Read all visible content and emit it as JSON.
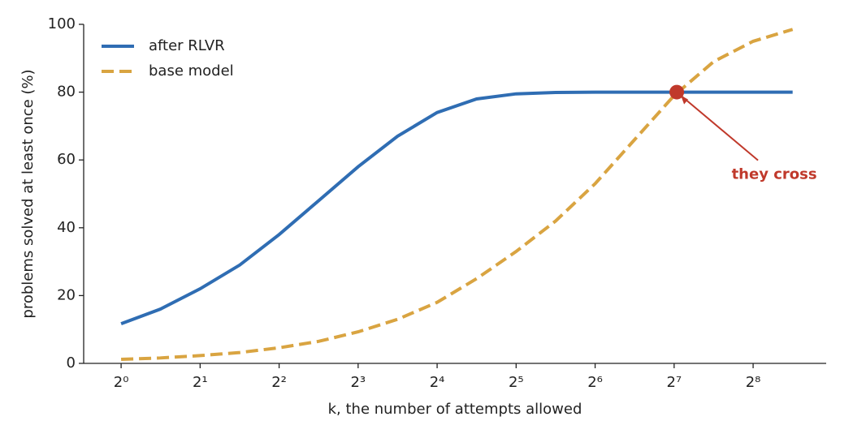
{
  "chart_data": {
    "type": "line",
    "xlabel": "k, the number of attempts allowed",
    "ylabel": "problems solved at least once (%)",
    "xscale": "log2",
    "x": [
      1,
      1.41,
      2,
      2.83,
      4,
      5.66,
      8,
      11.31,
      16,
      22.63,
      32,
      45.25,
      64,
      90.51,
      128,
      181.02,
      256,
      362.04
    ],
    "series": [
      {
        "name": "after RLVR",
        "color": "#2f6db3",
        "dash": "solid",
        "values": [
          11.7,
          16,
          22,
          29,
          38,
          48,
          58,
          67,
          74,
          78,
          79.5,
          79.9,
          80,
          80,
          80,
          80,
          80,
          80
        ]
      },
      {
        "name": "base model",
        "color": "#d9a441",
        "dash": "dashed",
        "values": [
          1.2,
          1.6,
          2.3,
          3.2,
          4.6,
          6.5,
          9.3,
          13,
          18,
          25,
          33,
          42,
          53,
          66,
          79,
          89,
          95,
          98.5
        ]
      }
    ],
    "xlim": [
      0.72,
      486
    ],
    "ylim": [
      0,
      100
    ],
    "xticks": [
      {
        "value": 1,
        "label": "2⁰"
      },
      {
        "value": 2,
        "label": "2¹"
      },
      {
        "value": 4,
        "label": "2²"
      },
      {
        "value": 8,
        "label": "2³"
      },
      {
        "value": 16,
        "label": "2⁴"
      },
      {
        "value": 32,
        "label": "2⁵"
      },
      {
        "value": 64,
        "label": "2⁶"
      },
      {
        "value": 128,
        "label": "2⁷"
      },
      {
        "value": 256,
        "label": "2⁸"
      }
    ],
    "yticks": [
      0,
      20,
      40,
      60,
      80,
      100
    ],
    "legend": "upper left",
    "annotation": {
      "text": "they cross",
      "x": 131,
      "y": 80,
      "color": "#c0392b"
    }
  }
}
